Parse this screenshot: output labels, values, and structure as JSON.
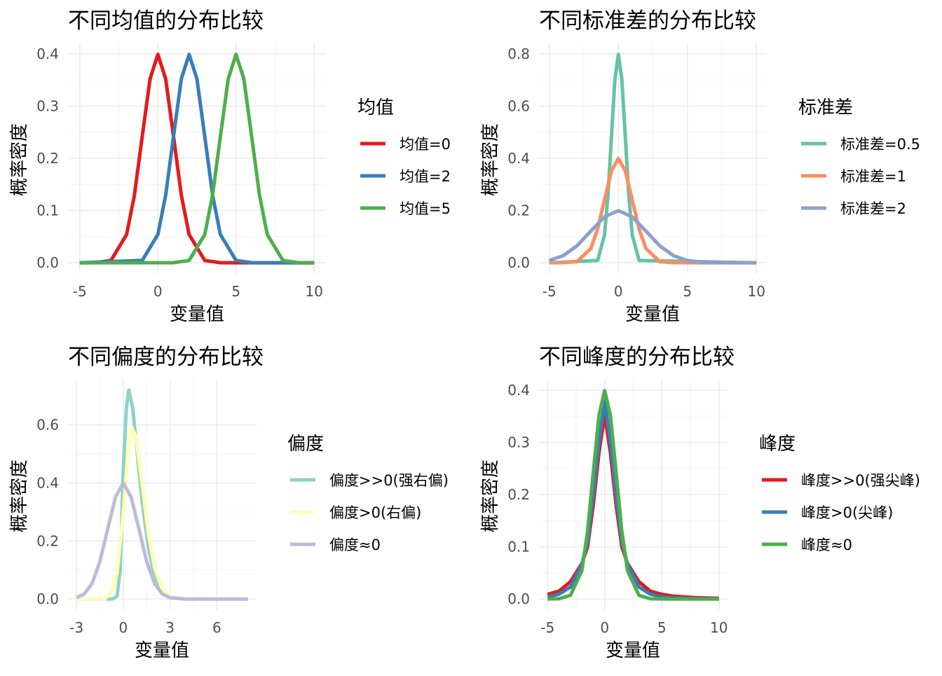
{
  "chart_data": [
    {
      "type": "line",
      "title": "不同均值的分布比较",
      "xlabel": "变量值",
      "ylabel": "概率密度",
      "xlim": [
        -5,
        10
      ],
      "ylim": [
        0,
        0.4
      ],
      "xticks": [
        -5,
        0,
        5,
        10
      ],
      "xtick_labels": [
        "-5",
        "0",
        "5",
        "10"
      ],
      "yticks": [
        0,
        0.1,
        0.2,
        0.3,
        0.4
      ],
      "ytick_labels": [
        "0.0",
        "0.1",
        "0.2",
        "0.3",
        "0.4"
      ],
      "grid": true,
      "legend_title": "均值",
      "legend_position": "right",
      "series": [
        {
          "name": "均值=0",
          "color": "#e41a1c",
          "x": [
            -5,
            -4,
            -3,
            -2,
            -1.5,
            -1,
            -0.5,
            0,
            0.5,
            1,
            1.5,
            2,
            3,
            4,
            5,
            10
          ],
          "y": [
            0,
            0.0001,
            0.0044,
            0.054,
            0.1295,
            0.242,
            0.352,
            0.399,
            0.352,
            0.242,
            0.1295,
            0.054,
            0.0044,
            0.0001,
            0,
            0
          ]
        },
        {
          "name": "均值=2",
          "color": "#377eb8",
          "x": [
            -5,
            -1,
            0,
            0.5,
            1,
            1.5,
            2,
            2.5,
            3,
            3.5,
            4,
            5,
            6,
            7,
            10
          ],
          "y": [
            0,
            0.0044,
            0.054,
            0.1295,
            0.242,
            0.352,
            0.399,
            0.352,
            0.242,
            0.1295,
            0.054,
            0.0044,
            0.0001,
            0,
            0
          ]
        },
        {
          "name": "均值=5",
          "color": "#4daf4a",
          "x": [
            -5,
            1,
            2,
            3,
            3.5,
            4,
            4.5,
            5,
            5.5,
            6,
            6.5,
            7,
            8,
            9,
            10
          ],
          "y": [
            0,
            0.0001,
            0.0044,
            0.054,
            0.1295,
            0.242,
            0.352,
            0.399,
            0.352,
            0.242,
            0.1295,
            0.054,
            0.0044,
            0.0001,
            0
          ]
        }
      ]
    },
    {
      "type": "line",
      "title": "不同标准差的分布比较",
      "xlabel": "变量值",
      "ylabel": "概率密度",
      "xlim": [
        -5,
        10
      ],
      "ylim": [
        0,
        0.8
      ],
      "xticks": [
        -5,
        0,
        5,
        10
      ],
      "xtick_labels": [
        "-5",
        "0",
        "5",
        "10"
      ],
      "yticks": [
        0,
        0.2,
        0.4,
        0.6,
        0.8
      ],
      "ytick_labels": [
        "0.0",
        "0.2",
        "0.4",
        "0.6",
        "0.8"
      ],
      "grid": true,
      "legend_title": "标准差",
      "legend_position": "right",
      "series": [
        {
          "name": "标准差=0.5",
          "color": "#66c2a5",
          "x": [
            -5,
            -1.5,
            -1,
            -0.75,
            -0.5,
            -0.25,
            0,
            0.25,
            0.5,
            0.75,
            1,
            1.5,
            10
          ],
          "y": [
            0,
            0.0089,
            0.108,
            0.259,
            0.484,
            0.704,
            0.798,
            0.704,
            0.484,
            0.259,
            0.108,
            0.0089,
            0
          ]
        },
        {
          "name": "标准差=1",
          "color": "#fc8d62",
          "x": [
            -5,
            -4,
            -3,
            -2,
            -1.5,
            -1,
            -0.5,
            0,
            0.5,
            1,
            1.5,
            2,
            3,
            4,
            10
          ],
          "y": [
            0,
            0.0001,
            0.0044,
            0.054,
            0.1295,
            0.242,
            0.352,
            0.399,
            0.352,
            0.242,
            0.1295,
            0.054,
            0.0044,
            0.0001,
            0
          ]
        },
        {
          "name": "标准差=2",
          "color": "#8da0cb",
          "x": [
            -5,
            -4,
            -3,
            -2,
            -1,
            0,
            1,
            2,
            3,
            4,
            5,
            6,
            7,
            10
          ],
          "y": [
            0.0088,
            0.027,
            0.0648,
            0.121,
            0.176,
            0.1995,
            0.176,
            0.121,
            0.0648,
            0.027,
            0.0088,
            0.0022,
            0.0004,
            0
          ]
        }
      ]
    },
    {
      "type": "line",
      "title": "不同偏度的分布比较",
      "xlabel": "变量值",
      "ylabel": "概率密度",
      "xlim": [
        -3,
        8
      ],
      "ylim": [
        0,
        0.72
      ],
      "xticks": [
        -3,
        0,
        3,
        6
      ],
      "xtick_labels": [
        "-3",
        "0",
        "3",
        "6"
      ],
      "yticks": [
        0,
        0.2,
        0.4,
        0.6
      ],
      "ytick_labels": [
        "0.0",
        "0.2",
        "0.4",
        "0.6"
      ],
      "grid": true,
      "legend_title": "偏度",
      "legend_position": "right",
      "series": [
        {
          "name": "偏度>>0(强右偏)",
          "color": "#8dd3c7",
          "x": [
            -3,
            -0.7,
            -0.4,
            -0.2,
            0,
            0.2,
            0.35,
            0.6,
            0.9,
            1.2,
            1.6,
            2,
            2.5,
            3,
            4,
            8
          ],
          "y": [
            0,
            0,
            0.01,
            0.1,
            0.45,
            0.66,
            0.72,
            0.66,
            0.5,
            0.34,
            0.18,
            0.08,
            0.025,
            0.005,
            0,
            0
          ]
        },
        {
          "name": "偏度>0(右偏)",
          "color": "#ffffb3",
          "x": [
            -3,
            -1.2,
            -0.8,
            -0.4,
            0,
            0.3,
            0.55,
            0.8,
            1.2,
            1.6,
            2,
            2.5,
            3,
            4,
            8
          ],
          "y": [
            0,
            0,
            0.02,
            0.09,
            0.3,
            0.5,
            0.59,
            0.56,
            0.4,
            0.23,
            0.11,
            0.035,
            0.008,
            0,
            0
          ]
        },
        {
          "name": "偏度≈0",
          "color": "#bebada",
          "x": [
            -3,
            -2.5,
            -2,
            -1.5,
            -1,
            -0.5,
            0,
            0.5,
            1,
            1.5,
            2,
            2.5,
            3,
            4,
            8
          ],
          "y": [
            0.0044,
            0.0175,
            0.054,
            0.1295,
            0.242,
            0.352,
            0.399,
            0.352,
            0.242,
            0.1295,
            0.054,
            0.0175,
            0.0044,
            0,
            0
          ]
        }
      ]
    },
    {
      "type": "line",
      "title": "不同峰度的分布比较",
      "xlabel": "变量值",
      "ylabel": "概率密度",
      "xlim": [
        -5,
        10
      ],
      "ylim": [
        0,
        0.4
      ],
      "xticks": [
        -5,
        0,
        5,
        10
      ],
      "xtick_labels": [
        "-5",
        "0",
        "5",
        "10"
      ],
      "yticks": [
        0,
        0.1,
        0.2,
        0.3,
        0.4
      ],
      "ytick_labels": [
        "0.0",
        "0.1",
        "0.2",
        "0.3",
        "0.4"
      ],
      "grid": true,
      "legend_title": "峰度",
      "legend_position": "right",
      "series": [
        {
          "name": "峰度>>0(强尖峰)",
          "color": "#e41a1c",
          "x": [
            -5,
            -4,
            -3,
            -2,
            -1.5,
            -1,
            -0.5,
            0,
            0.5,
            1,
            1.5,
            2,
            3,
            4,
            5,
            6,
            8,
            10
          ],
          "y": [
            0.0088,
            0.015,
            0.033,
            0.068,
            0.1,
            0.18,
            0.28,
            0.354,
            0.28,
            0.18,
            0.1,
            0.068,
            0.033,
            0.015,
            0.0088,
            0.0055,
            0.0025,
            0.0013
          ]
        },
        {
          "name": "峰度>0(尖峰)",
          "color": "#377eb8",
          "x": [
            -5,
            -4,
            -3,
            -2,
            -1.5,
            -1,
            -0.5,
            0,
            0.5,
            1,
            1.5,
            2,
            3,
            4,
            5,
            6,
            8,
            10
          ],
          "y": [
            0.0041,
            0.0092,
            0.023,
            0.066,
            0.11,
            0.2,
            0.3,
            0.38,
            0.3,
            0.2,
            0.11,
            0.066,
            0.023,
            0.0092,
            0.0041,
            0.002,
            0.0006,
            0.0002
          ]
        },
        {
          "name": "峰度≈0",
          "color": "#4daf4a",
          "x": [
            -5,
            -4,
            -3,
            -2,
            -1.5,
            -1,
            -0.5,
            0,
            0.5,
            1,
            1.5,
            2,
            3,
            4,
            5,
            6,
            8,
            10
          ],
          "y": [
            0.0001,
            0.0004,
            0.007,
            0.054,
            0.1295,
            0.242,
            0.352,
            0.399,
            0.352,
            0.242,
            0.1295,
            0.054,
            0.007,
            0.0004,
            0.0001,
            0,
            0,
            0
          ]
        }
      ]
    }
  ]
}
